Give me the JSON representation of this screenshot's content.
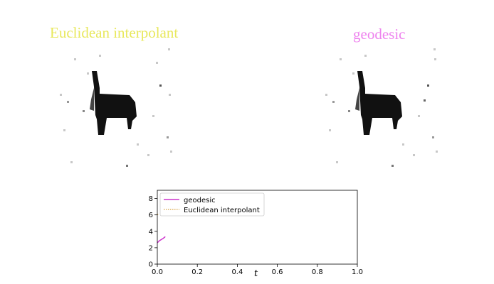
{
  "panels": {
    "left_title": "Euclidean interpolant",
    "left_title_color": "#e8e85c",
    "right_title": "geodesic",
    "right_title_color": "#ee82ee"
  },
  "chart_data": {
    "type": "line",
    "title": "",
    "xlabel": "t",
    "ylabel": "",
    "xlim": [
      0.0,
      1.0
    ],
    "ylim": [
      0,
      9
    ],
    "xticks": [
      0.0,
      0.2,
      0.4,
      0.6,
      0.8,
      1.0
    ],
    "xtick_labels": [
      "0.0",
      "0.2",
      "0.4",
      "0.6",
      "0.8",
      "1.0"
    ],
    "yticks": [
      0,
      2,
      4,
      6,
      8
    ],
    "ytick_labels": [
      "0",
      "2",
      "4",
      "6",
      "8"
    ],
    "grid": false,
    "legend_position": "top-left",
    "series": [
      {
        "name": "geodesic",
        "color": "#cc33cc",
        "style": "solid",
        "x": [
          0.0,
          0.01,
          0.02,
          0.03,
          0.04
        ],
        "y": [
          2.6,
          2.85,
          3.0,
          3.15,
          3.35
        ]
      },
      {
        "name": "Euclidean interpolant",
        "color": "#d9a441",
        "style": "dotted",
        "x": [
          0.0,
          0.005
        ],
        "y": [
          6.0,
          6.1
        ]
      }
    ]
  }
}
